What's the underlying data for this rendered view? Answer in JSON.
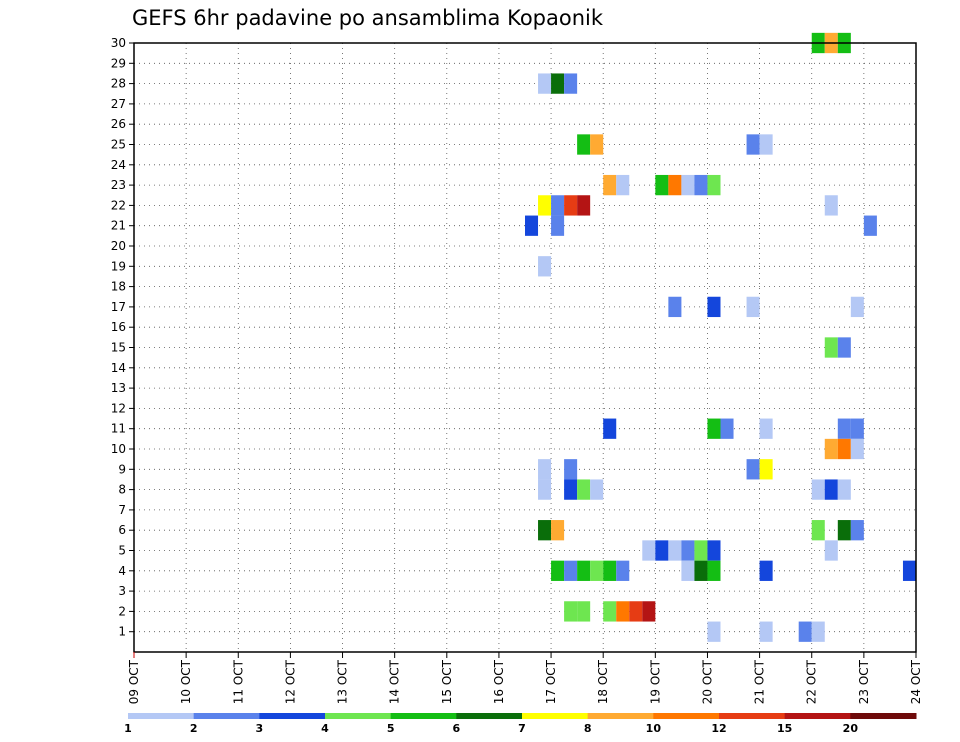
{
  "chart_data": {
    "type": "heatmap",
    "title": "GEFS 6hr padavine po ansamblima Kopaonik",
    "xlabel": "",
    "ylabel": "",
    "x_ticks": [
      "09 OCT",
      "10 OCT",
      "11 OCT",
      "12 OCT",
      "13 OCT",
      "14 OCT",
      "15 OCT",
      "16 OCT",
      "17 OCT",
      "18 OCT",
      "19 OCT",
      "20 OCT",
      "21 OCT",
      "22 OCT",
      "23 OCT",
      "24 OCT"
    ],
    "y_ticks": [
      1,
      2,
      3,
      4,
      5,
      6,
      7,
      8,
      9,
      10,
      11,
      12,
      13,
      14,
      15,
      16,
      17,
      18,
      19,
      20,
      21,
      22,
      23,
      24,
      25,
      26,
      27,
      28,
      29,
      30
    ],
    "xlim_days": [
      0,
      15
    ],
    "ylim": [
      0,
      30
    ],
    "grid": true,
    "legend": {
      "position": "bottom",
      "labels": [
        "1",
        "2",
        "3",
        "4",
        "5",
        "6",
        "7",
        "8",
        "10",
        "12",
        "15",
        "20"
      ],
      "colors": [
        "#b4c8f5",
        "#5a82eb",
        "#1446dc",
        "#6ee650",
        "#14be14",
        "#0a6e0a",
        "#ffff00",
        "#ffaa32",
        "#ff7800",
        "#e63c14",
        "#b41414",
        "#6e0a0a"
      ]
    },
    "cells": [
      {
        "member": 30,
        "time": 13.0,
        "bin": 5
      },
      {
        "member": 30,
        "time": 13.25,
        "bin": 8
      },
      {
        "member": 30,
        "time": 13.5,
        "bin": 5
      },
      {
        "member": 28,
        "time": 7.75,
        "bin": 1
      },
      {
        "member": 28,
        "time": 8.0,
        "bin": 6
      },
      {
        "member": 28,
        "time": 8.25,
        "bin": 2
      },
      {
        "member": 25,
        "time": 8.5,
        "bin": 5
      },
      {
        "member": 25,
        "time": 8.75,
        "bin": 8
      },
      {
        "member": 25,
        "time": 11.75,
        "bin": 2
      },
      {
        "member": 25,
        "time": 12.0,
        "bin": 1
      },
      {
        "member": 23,
        "time": 9.0,
        "bin": 8
      },
      {
        "member": 23,
        "time": 9.25,
        "bin": 1
      },
      {
        "member": 23,
        "time": 10.0,
        "bin": 5
      },
      {
        "member": 23,
        "time": 10.25,
        "bin": 9
      },
      {
        "member": 23,
        "time": 10.5,
        "bin": 1
      },
      {
        "member": 23,
        "time": 10.75,
        "bin": 2
      },
      {
        "member": 23,
        "time": 11.0,
        "bin": 4
      },
      {
        "member": 22,
        "time": 7.75,
        "bin": 7
      },
      {
        "member": 22,
        "time": 8.0,
        "bin": 2
      },
      {
        "member": 22,
        "time": 8.25,
        "bin": 10
      },
      {
        "member": 22,
        "time": 8.5,
        "bin": 11
      },
      {
        "member": 22,
        "time": 13.25,
        "bin": 1
      },
      {
        "member": 21,
        "time": 7.5,
        "bin": 3
      },
      {
        "member": 21,
        "time": 8.0,
        "bin": 2
      },
      {
        "member": 21,
        "time": 14.0,
        "bin": 2
      },
      {
        "member": 19,
        "time": 7.75,
        "bin": 1
      },
      {
        "member": 17,
        "time": 10.25,
        "bin": 2
      },
      {
        "member": 17,
        "time": 11.0,
        "bin": 3
      },
      {
        "member": 17,
        "time": 11.75,
        "bin": 1
      },
      {
        "member": 17,
        "time": 13.75,
        "bin": 1
      },
      {
        "member": 15,
        "time": 13.25,
        "bin": 4
      },
      {
        "member": 15,
        "time": 13.5,
        "bin": 2
      },
      {
        "member": 11,
        "time": 9.0,
        "bin": 3
      },
      {
        "member": 11,
        "time": 11.0,
        "bin": 5
      },
      {
        "member": 11,
        "time": 11.25,
        "bin": 2
      },
      {
        "member": 11,
        "time": 12.0,
        "bin": 1
      },
      {
        "member": 11,
        "time": 13.5,
        "bin": 2
      },
      {
        "member": 11,
        "time": 13.75,
        "bin": 2
      },
      {
        "member": 10,
        "time": 13.25,
        "bin": 8
      },
      {
        "member": 10,
        "time": 13.5,
        "bin": 9
      },
      {
        "member": 10,
        "time": 13.75,
        "bin": 1
      },
      {
        "member": 9,
        "time": 7.75,
        "bin": 1
      },
      {
        "member": 9,
        "time": 8.25,
        "bin": 2
      },
      {
        "member": 9,
        "time": 11.75,
        "bin": 2
      },
      {
        "member": 9,
        "time": 12.0,
        "bin": 7
      },
      {
        "member": 8,
        "time": 7.75,
        "bin": 1
      },
      {
        "member": 8,
        "time": 8.25,
        "bin": 3
      },
      {
        "member": 8,
        "time": 8.5,
        "bin": 4
      },
      {
        "member": 8,
        "time": 8.75,
        "bin": 1
      },
      {
        "member": 8,
        "time": 13.0,
        "bin": 1
      },
      {
        "member": 8,
        "time": 13.25,
        "bin": 3
      },
      {
        "member": 8,
        "time": 13.5,
        "bin": 1
      },
      {
        "member": 6,
        "time": 7.75,
        "bin": 6
      },
      {
        "member": 6,
        "time": 8.0,
        "bin": 8
      },
      {
        "member": 6,
        "time": 13.0,
        "bin": 4
      },
      {
        "member": 6,
        "time": 13.5,
        "bin": 6
      },
      {
        "member": 6,
        "time": 13.75,
        "bin": 2
      },
      {
        "member": 5,
        "time": 9.75,
        "bin": 1
      },
      {
        "member": 5,
        "time": 10.0,
        "bin": 3
      },
      {
        "member": 5,
        "time": 10.25,
        "bin": 1
      },
      {
        "member": 5,
        "time": 10.5,
        "bin": 2
      },
      {
        "member": 5,
        "time": 10.75,
        "bin": 4
      },
      {
        "member": 5,
        "time": 11.0,
        "bin": 3
      },
      {
        "member": 5,
        "time": 13.25,
        "bin": 1
      },
      {
        "member": 4,
        "time": 8.0,
        "bin": 5
      },
      {
        "member": 4,
        "time": 8.25,
        "bin": 2
      },
      {
        "member": 4,
        "time": 8.5,
        "bin": 5
      },
      {
        "member": 4,
        "time": 8.75,
        "bin": 4
      },
      {
        "member": 4,
        "time": 9.0,
        "bin": 5
      },
      {
        "member": 4,
        "time": 9.25,
        "bin": 2
      },
      {
        "member": 4,
        "time": 10.5,
        "bin": 1
      },
      {
        "member": 4,
        "time": 10.75,
        "bin": 6
      },
      {
        "member": 4,
        "time": 11.0,
        "bin": 5
      },
      {
        "member": 4,
        "time": 12.0,
        "bin": 3
      },
      {
        "member": 4,
        "time": 14.75,
        "bin": 3
      },
      {
        "member": 2,
        "time": 8.25,
        "bin": 4
      },
      {
        "member": 2,
        "time": 8.5,
        "bin": 4
      },
      {
        "member": 2,
        "time": 9.0,
        "bin": 4
      },
      {
        "member": 2,
        "time": 9.25,
        "bin": 9
      },
      {
        "member": 2,
        "time": 9.5,
        "bin": 10
      },
      {
        "member": 2,
        "time": 9.75,
        "bin": 11
      },
      {
        "member": 1,
        "time": 11.0,
        "bin": 1
      },
      {
        "member": 1,
        "time": 12.0,
        "bin": 1
      },
      {
        "member": 1,
        "time": 12.75,
        "bin": 2
      },
      {
        "member": 1,
        "time": 13.0,
        "bin": 1
      }
    ]
  }
}
